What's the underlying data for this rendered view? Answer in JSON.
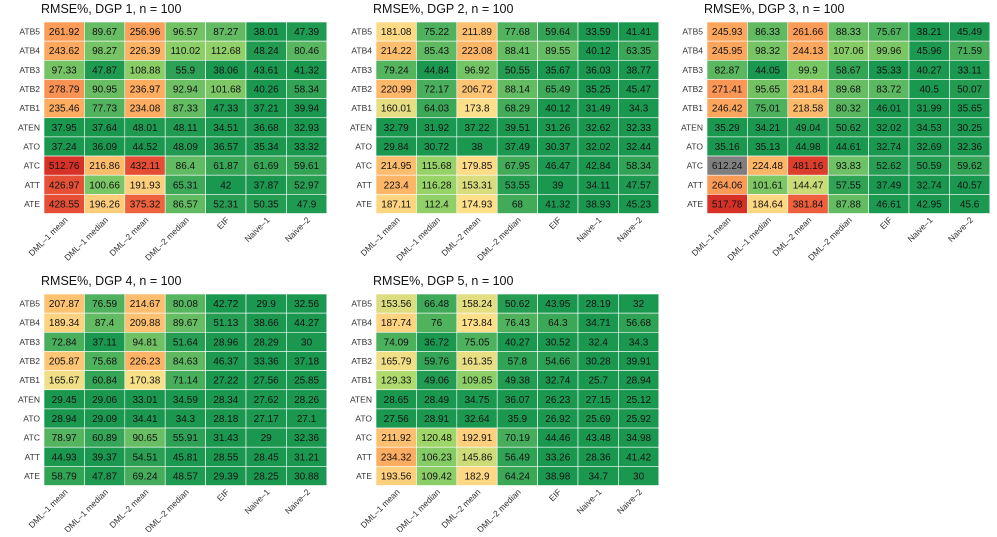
{
  "chart_data": [
    {
      "type": "heatmap",
      "title": "RMSE%, DGP 1, n = 100",
      "columns": [
        "DML–1 mean",
        "DML–1 median",
        "DML–2 mean",
        "DML–2 median",
        "EIF",
        "Naive–1",
        "Naive–2"
      ],
      "rows": [
        "ATB5",
        "ATB4",
        "ATB3",
        "ATB2",
        "ATB1",
        "ATEN",
        "ATO",
        "ATC",
        "ATT",
        "ATE"
      ],
      "values": [
        [
          261.92,
          89.67,
          256.96,
          96.57,
          87.27,
          38.01,
          47.39
        ],
        [
          243.62,
          98.27,
          226.39,
          110.02,
          112.68,
          48.24,
          80.46
        ],
        [
          97.33,
          47.87,
          108.88,
          55.9,
          38.06,
          43.61,
          41.32
        ],
        [
          278.79,
          90.95,
          236.97,
          92.94,
          101.68,
          40.26,
          58.34
        ],
        [
          235.46,
          77.73,
          234.08,
          87.33,
          47.33,
          37.21,
          39.94
        ],
        [
          37.95,
          37.64,
          48.01,
          48.11,
          34.51,
          36.68,
          32.93
        ],
        [
          37.24,
          36.09,
          44.52,
          48.09,
          36.57,
          35.34,
          33.32
        ],
        [
          512.76,
          216.86,
          432.11,
          86.4,
          61.87,
          61.69,
          59.61
        ],
        [
          426.97,
          100.66,
          191.93,
          65.31,
          42,
          37.87,
          52.97
        ],
        [
          428.55,
          196.26,
          375.32,
          86.57,
          52.31,
          50.35,
          47.9
        ]
      ]
    },
    {
      "type": "heatmap",
      "title": "RMSE%, DGP 2, n = 100",
      "columns": [
        "DML–1 mean",
        "DML–1 median",
        "DML–2 mean",
        "DML–2 median",
        "EIF",
        "Naive–1",
        "Naive–2"
      ],
      "rows": [
        "ATB5",
        "ATB4",
        "ATB3",
        "ATB2",
        "ATB1",
        "ATEN",
        "ATO",
        "ATC",
        "ATT",
        "ATE"
      ],
      "values": [
        [
          181.08,
          75.22,
          211.89,
          77.68,
          59.64,
          33.59,
          41.41
        ],
        [
          214.22,
          85.43,
          223.08,
          88.41,
          89.55,
          40.12,
          63.35
        ],
        [
          79.24,
          44.84,
          96.92,
          50.55,
          35.67,
          36.03,
          38.77
        ],
        [
          220.99,
          72.17,
          206.72,
          88.14,
          65.49,
          35.25,
          45.47
        ],
        [
          160.01,
          64.03,
          173.8,
          68.29,
          40.12,
          31.49,
          34.3
        ],
        [
          32.79,
          31.92,
          37.22,
          39.51,
          31.26,
          32.62,
          32.33
        ],
        [
          29.84,
          30.72,
          38,
          37.49,
          30.37,
          32.02,
          32.44
        ],
        [
          214.95,
          115.68,
          179.85,
          67.95,
          46.47,
          42.84,
          58.34
        ],
        [
          223.4,
          116.28,
          153.31,
          53.55,
          39,
          34.11,
          47.57
        ],
        [
          187.11,
          112.4,
          174.93,
          68,
          41.32,
          38.93,
          45.23
        ]
      ]
    },
    {
      "type": "heatmap",
      "title": "RMSE%, DGP 3, n = 100",
      "columns": [
        "DML–1 mean",
        "DML–1 median",
        "DML–2 mean",
        "DML–2 median",
        "EIF",
        "Naive–1",
        "Naive–2"
      ],
      "rows": [
        "ATB5",
        "ATB4",
        "ATB3",
        "ATB2",
        "ATB1",
        "ATEN",
        "ATO",
        "ATC",
        "ATT",
        "ATE"
      ],
      "values": [
        [
          245.93,
          86.33,
          261.66,
          88.33,
          75.67,
          38.21,
          45.49
        ],
        [
          245.95,
          98.32,
          244.13,
          107.06,
          99.96,
          45.96,
          71.59
        ],
        [
          82.87,
          44.05,
          99.9,
          58.67,
          35.33,
          40.27,
          33.11
        ],
        [
          271.41,
          95.65,
          231.84,
          89.68,
          83.72,
          40.5,
          50.07
        ],
        [
          246.42,
          75.01,
          218.58,
          80.32,
          46.01,
          31.99,
          35.65
        ],
        [
          35.29,
          34.21,
          49.04,
          50.62,
          32.02,
          34.53,
          30.25
        ],
        [
          35.16,
          35.13,
          44.98,
          44.61,
          32.74,
          32.69,
          32.36
        ],
        [
          612.24,
          224.48,
          481.16,
          93.83,
          52.62,
          50.59,
          59.62
        ],
        [
          264.06,
          101.61,
          144.47,
          57.55,
          37.49,
          32.74,
          40.57
        ],
        [
          517.78,
          184.64,
          381.84,
          87.88,
          46.61,
          42.95,
          45.6
        ]
      ]
    },
    {
      "type": "heatmap",
      "title": "RMSE%, DGP 4, n = 100",
      "columns": [
        "DML–1 mean",
        "DML–1 median",
        "DML–2 mean",
        "DML–2 median",
        "EIF",
        "Naive–1",
        "Naive–2"
      ],
      "rows": [
        "ATB5",
        "ATB4",
        "ATB3",
        "ATB2",
        "ATB1",
        "ATEN",
        "ATO",
        "ATC",
        "ATT",
        "ATE"
      ],
      "values": [
        [
          207.87,
          76.59,
          214.67,
          80.08,
          42.72,
          29.9,
          32.56
        ],
        [
          189.34,
          87.4,
          209.88,
          89.67,
          51.13,
          38.66,
          44.27
        ],
        [
          72.84,
          37.11,
          94.81,
          51.64,
          28.96,
          28.29,
          30
        ],
        [
          205.87,
          75.68,
          226.23,
          84.63,
          46.37,
          33.36,
          37.18
        ],
        [
          165.67,
          60.84,
          170.38,
          71.14,
          27.22,
          27.56,
          25.85
        ],
        [
          29.45,
          29.06,
          33.01,
          34.59,
          28.34,
          27.62,
          28.26
        ],
        [
          28.94,
          29.09,
          34.41,
          34.3,
          28.18,
          27.17,
          27.1
        ],
        [
          78.97,
          60.89,
          90.65,
          55.91,
          31.43,
          29,
          32.36
        ],
        [
          44.93,
          39.37,
          54.51,
          45.81,
          28.55,
          28.45,
          31.21
        ],
        [
          58.79,
          47.87,
          69.24,
          48.57,
          29.39,
          28.25,
          30.88
        ]
      ]
    },
    {
      "type": "heatmap",
      "title": "RMSE%, DGP 5, n = 100",
      "columns": [
        "DML–1 mean",
        "DML–1 median",
        "DML–2 mean",
        "DML–2 median",
        "EIF",
        "Naive–1",
        "Naive–2"
      ],
      "rows": [
        "ATB5",
        "ATB4",
        "ATB3",
        "ATB2",
        "ATB1",
        "ATEN",
        "ATO",
        "ATC",
        "ATT",
        "ATE"
      ],
      "values": [
        [
          153.56,
          66.48,
          158.24,
          50.62,
          43.95,
          28.19,
          32
        ],
        [
          187.74,
          76,
          173.84,
          76.43,
          64.3,
          34.71,
          56.68
        ],
        [
          74.09,
          36.72,
          75.05,
          40.27,
          30.52,
          32.4,
          34.3
        ],
        [
          165.79,
          59.76,
          161.35,
          57.8,
          54.66,
          30.28,
          39.91
        ],
        [
          129.33,
          49.06,
          109.85,
          49.38,
          32.74,
          25.7,
          28.94
        ],
        [
          28.65,
          28.49,
          34.75,
          36.07,
          26.23,
          27.15,
          25.12
        ],
        [
          27.56,
          28.91,
          32.64,
          35.9,
          26.92,
          25.69,
          25.92
        ],
        [
          211.92,
          120.48,
          192.91,
          70.19,
          44.46,
          43.48,
          34.98
        ],
        [
          234.32,
          106.23,
          145.86,
          56.49,
          33.26,
          28.36,
          41.42
        ],
        [
          193.56,
          109.42,
          182.9,
          64.24,
          38.98,
          34.7,
          30
        ]
      ]
    }
  ],
  "colors": {
    "low": "#1a9850",
    "mid_low": "#66bd63",
    "mid": "#a6d96a",
    "mid_high": "#fee08b",
    "high": "#fdae61",
    "very_high": "#f46d43",
    "extreme": "#d73027",
    "out_of_range": "#7f7f7f"
  },
  "color_scale": {
    "min": 25,
    "max": 520
  }
}
